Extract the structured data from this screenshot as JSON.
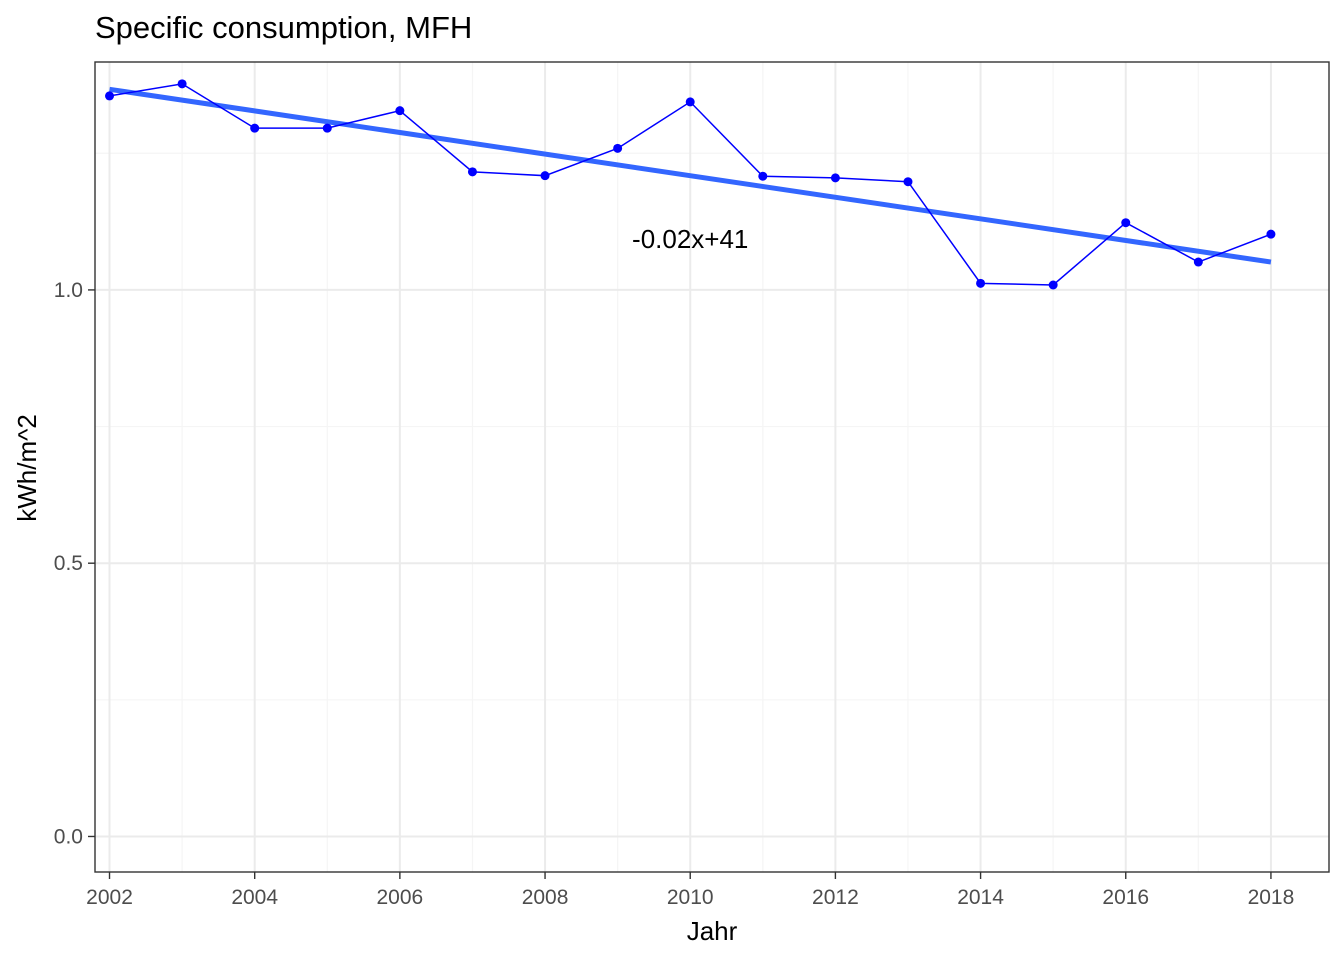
{
  "chart_data": {
    "type": "line",
    "title": "Specific consumption, MFH",
    "xlabel": "Jahr",
    "ylabel": "kWh/m^2",
    "xlim": [
      2001.8,
      2018.8
    ],
    "ylim": [
      -0.065,
      1.417
    ],
    "x_ticks": [
      2002,
      2004,
      2006,
      2008,
      2010,
      2012,
      2014,
      2016,
      2018
    ],
    "y_ticks": [
      0.0,
      0.5,
      1.0
    ],
    "y_tick_labels": [
      "0.0",
      "0.5",
      "1.0"
    ],
    "grid": true,
    "series": [
      {
        "values": [
          {
            "x": 2002,
            "y": 1.355
          },
          {
            "x": 2003,
            "y": 1.377
          },
          {
            "x": 2004,
            "y": 1.296
          },
          {
            "x": 2005,
            "y": 1.296
          },
          {
            "x": 2006,
            "y": 1.328
          },
          {
            "x": 2007,
            "y": 1.216
          },
          {
            "x": 2008,
            "y": 1.209
          },
          {
            "x": 2009,
            "y": 1.259
          },
          {
            "x": 2010,
            "y": 1.344
          },
          {
            "x": 2011,
            "y": 1.208
          },
          {
            "x": 2012,
            "y": 1.205
          },
          {
            "x": 2013,
            "y": 1.198
          },
          {
            "x": 2014,
            "y": 1.012
          },
          {
            "x": 2015,
            "y": 1.009
          },
          {
            "x": 2016,
            "y": 1.123
          },
          {
            "x": 2017,
            "y": 1.051
          },
          {
            "x": 2018,
            "y": 1.102
          }
        ],
        "color": "#0000ff"
      }
    ],
    "trend": {
      "from": {
        "x": 2002,
        "y": 1.367
      },
      "to": {
        "x": 2018,
        "y": 1.051
      },
      "color": "#3366ff"
    },
    "annotations": [
      {
        "text": "-0.02x+41",
        "x": 2010,
        "y": 1.095
      }
    ]
  },
  "colors": {
    "panel_border": "#333333",
    "grid_major": "#ebebeb",
    "grid_minor": "#f5f5f5",
    "tick_label": "#4d4d4d"
  }
}
